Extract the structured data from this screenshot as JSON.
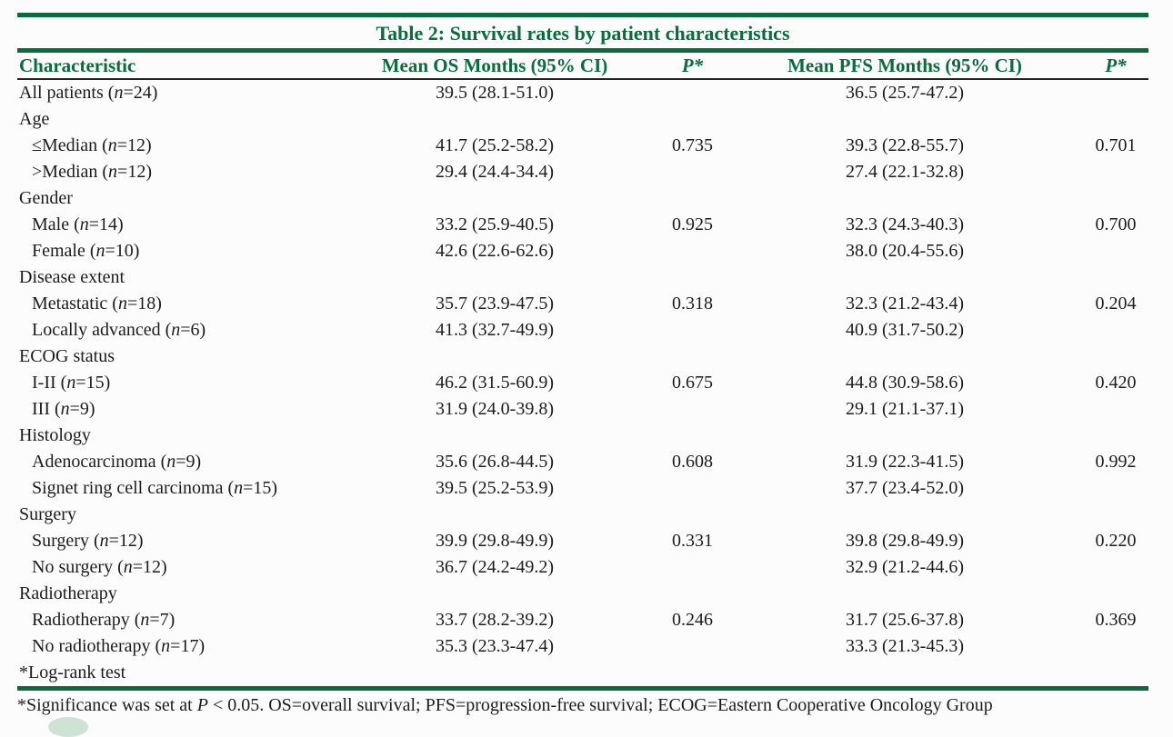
{
  "colors": {
    "green": "#0b6a3e",
    "thin_rule": "#232323",
    "page_bg": "#fbfcfb",
    "blob": "#cfe2d6"
  },
  "title": "Table 2: Survival rates by patient characteristics",
  "columns": [
    "Characteristic",
    "Mean OS Months (95% CI)",
    "P*",
    "Mean PFS Months (95% CI)",
    "P*"
  ],
  "rows": [
    {
      "label": "All patients (n=24)",
      "indent": 0,
      "os": "39.5 (28.1-51.0)",
      "p_os": "",
      "pfs": "36.5 (25.7-47.2)",
      "p_pfs": ""
    },
    {
      "label": "Age",
      "indent": 0,
      "os": "",
      "p_os": "",
      "pfs": "",
      "p_pfs": ""
    },
    {
      "label": "≤Median (n=12)",
      "indent": 1,
      "os": "41.7 (25.2-58.2)",
      "p_os": "0.735",
      "pfs": "39.3 (22.8-55.7)",
      "p_pfs": "0.701"
    },
    {
      "label": ">Median (n=12)",
      "indent": 1,
      "os": "29.4 (24.4-34.4)",
      "p_os": "",
      "pfs": "27.4 (22.1-32.8)",
      "p_pfs": ""
    },
    {
      "label": "Gender",
      "indent": 0,
      "os": "",
      "p_os": "",
      "pfs": "",
      "p_pfs": ""
    },
    {
      "label": "Male (n=14)",
      "indent": 1,
      "os": "33.2 (25.9-40.5)",
      "p_os": "0.925",
      "pfs": "32.3 (24.3-40.3)",
      "p_pfs": "0.700"
    },
    {
      "label": "Female (n=10)",
      "indent": 1,
      "os": "42.6 (22.6-62.6)",
      "p_os": "",
      "pfs": "38.0 (20.4-55.6)",
      "p_pfs": ""
    },
    {
      "label": "Disease extent",
      "indent": 0,
      "os": "",
      "p_os": "",
      "pfs": "",
      "p_pfs": ""
    },
    {
      "label": "Metastatic (n=18)",
      "indent": 1,
      "os": "35.7 (23.9-47.5)",
      "p_os": "0.318",
      "pfs": "32.3 (21.2-43.4)",
      "p_pfs": "0.204"
    },
    {
      "label": "Locally advanced (n=6)",
      "indent": 1,
      "os": "41.3 (32.7-49.9)",
      "p_os": "",
      "pfs": "40.9 (31.7-50.2)",
      "p_pfs": ""
    },
    {
      "label": "ECOG status",
      "indent": 0,
      "os": "",
      "p_os": "",
      "pfs": "",
      "p_pfs": ""
    },
    {
      "label": "I-II (n=15)",
      "indent": 1,
      "os": "46.2 (31.5-60.9)",
      "p_os": "0.675",
      "pfs": "44.8 (30.9-58.6)",
      "p_pfs": "0.420"
    },
    {
      "label": "III (n=9)",
      "indent": 1,
      "os": "31.9 (24.0-39.8)",
      "p_os": "",
      "pfs": "29.1 (21.1-37.1)",
      "p_pfs": ""
    },
    {
      "label": "Histology",
      "indent": 0,
      "os": "",
      "p_os": "",
      "pfs": "",
      "p_pfs": ""
    },
    {
      "label": "Adenocarcinoma (n=9)",
      "indent": 1,
      "os": "35.6 (26.8-44.5)",
      "p_os": "0.608",
      "pfs": "31.9 (22.3-41.5)",
      "p_pfs": "0.992"
    },
    {
      "label": "Signet ring cell carcinoma (n=15)",
      "indent": 1,
      "os": "39.5 (25.2-53.9)",
      "p_os": "",
      "pfs": "37.7 (23.4-52.0)",
      "p_pfs": ""
    },
    {
      "label": "Surgery",
      "indent": 0,
      "os": "",
      "p_os": "",
      "pfs": "",
      "p_pfs": ""
    },
    {
      "label": "Surgery (n=12)",
      "indent": 1,
      "os": "39.9 (29.8-49.9)",
      "p_os": "0.331",
      "pfs": "39.8 (29.8-49.9)",
      "p_pfs": "0.220"
    },
    {
      "label": "No surgery (n=12)",
      "indent": 1,
      "os": "36.7 (24.2-49.2)",
      "p_os": "",
      "pfs": "32.9 (21.2-44.6)",
      "p_pfs": ""
    },
    {
      "label": "Radiotherapy",
      "indent": 0,
      "os": "",
      "p_os": "",
      "pfs": "",
      "p_pfs": ""
    },
    {
      "label": "Radiotherapy (n=7)",
      "indent": 1,
      "os": "33.7 (28.2-39.2)",
      "p_os": "0.246",
      "pfs": "31.7 (25.6-37.8)",
      "p_pfs": "0.369"
    },
    {
      "label": "No radiotherapy (n=17)",
      "indent": 1,
      "os": "35.3 (23.3-47.4)",
      "p_os": "",
      "pfs": "33.3 (21.3-45.3)",
      "p_pfs": ""
    },
    {
      "label": "*Log-rank test",
      "indent": 0,
      "os": "",
      "p_os": "",
      "pfs": "",
      "p_pfs": ""
    }
  ],
  "footnote": {
    "prefix": "*Significance was set at ",
    "italic": "P",
    "suffix": " < 0.05. OS=overall survival; PFS=progression-free survival; ECOG=Eastern Cooperative Oncology Group"
  }
}
